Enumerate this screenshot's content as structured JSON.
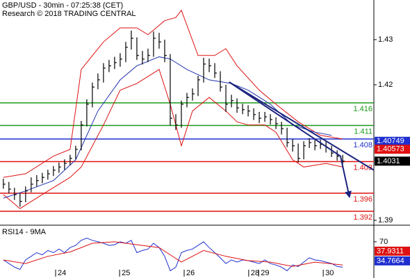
{
  "chart_data": [
    {
      "type": "ohlc",
      "title": "GBP/USD - 30min - 07:25:38 (CET)",
      "subtitle": "Research © 2018 TRADING CENTRAL",
      "color": "#000000",
      "values": [
        1.398,
        1.3969,
        1.3957,
        1.3942,
        1.3965,
        1.398,
        1.3988,
        1.3995,
        1.4003,
        1.4011,
        1.4018,
        1.4026,
        1.4037,
        1.4057,
        1.4111,
        1.4157,
        1.4195,
        1.4211,
        1.4237,
        1.4242,
        1.4249,
        1.4257,
        1.4283,
        1.4303,
        1.4265,
        1.4257,
        1.4265,
        1.4303,
        1.4295,
        1.4265,
        1.4126,
        1.4111,
        1.4157,
        1.4172,
        1.418,
        1.4211,
        1.4246,
        1.4242,
        1.4226,
        1.4195,
        1.4157,
        1.4165,
        1.4149,
        1.4145,
        1.4142,
        1.4134,
        1.4126,
        1.4129,
        1.4123,
        1.4114,
        1.4103,
        1.4072,
        1.4065,
        1.4037,
        1.4065,
        1.4072,
        1.4065,
        1.4068,
        1.4062,
        1.4049,
        1.4042,
        1.4031
      ],
      "high": [
        1.3992,
        1.3985,
        1.3972,
        1.396,
        1.3975,
        1.3995,
        1.4,
        1.4005,
        1.4012,
        1.402,
        1.4028,
        1.4035,
        1.4045,
        1.4065,
        1.412,
        1.4168,
        1.4205,
        1.4225,
        1.4248,
        1.4255,
        1.4262,
        1.427,
        1.4295,
        1.432,
        1.4305,
        1.4275,
        1.428,
        1.4318,
        1.4315,
        1.43,
        1.4268,
        1.4135,
        1.4165,
        1.4182,
        1.4192,
        1.422,
        1.426,
        1.4258,
        1.4248,
        1.423,
        1.42,
        1.4178,
        1.417,
        1.4158,
        1.4155,
        1.4148,
        1.414,
        1.414,
        1.4135,
        1.4128,
        1.4118,
        1.4105,
        1.408,
        1.407,
        1.4075,
        1.4082,
        1.4078,
        1.4078,
        1.4075,
        1.4065,
        1.4055,
        1.4045
      ],
      "low": [
        1.397,
        1.396,
        1.3945,
        1.393,
        1.394,
        1.3962,
        1.3975,
        1.3982,
        1.399,
        1.3998,
        1.4005,
        1.4012,
        1.4022,
        1.4035,
        1.4055,
        1.4108,
        1.415,
        1.419,
        1.4205,
        1.4228,
        1.4235,
        1.424,
        1.425,
        1.4278,
        1.4255,
        1.4245,
        1.425,
        1.4262,
        1.428,
        1.425,
        1.411,
        1.41,
        1.4105,
        1.415,
        1.4165,
        1.4175,
        1.4205,
        1.4228,
        1.4215,
        1.4185,
        1.414,
        1.415,
        1.4138,
        1.4135,
        1.413,
        1.4122,
        1.4115,
        1.4118,
        1.4112,
        1.4102,
        1.409,
        1.4062,
        1.4052,
        1.4028,
        1.4035,
        1.406,
        1.4055,
        1.4058,
        1.405,
        1.404,
        1.4032,
        1.4025
      ],
      "overlays": [
        {
          "color": "#dd1111",
          "x": [
            0,
            4,
            9,
            12,
            14,
            18,
            21,
            24,
            26,
            29,
            31,
            32,
            35,
            38,
            40,
            42,
            46,
            49,
            53,
            57,
            61
          ],
          "values": [
            1.3995,
            1.4003,
            1.4042,
            1.4057,
            1.4234,
            1.4295,
            1.4326,
            1.4326,
            1.4311,
            1.4342,
            1.4349,
            1.4365,
            1.4265,
            1.4265,
            1.428,
            1.4242,
            1.4188,
            1.4157,
            1.4118,
            1.4088,
            1.408
          ]
        },
        {
          "color": "#dd1111",
          "x": [
            0,
            3,
            7,
            12,
            14,
            18,
            21,
            24,
            28,
            30,
            32,
            34,
            37,
            40,
            42,
            44,
            47,
            49,
            52,
            54,
            58,
            61
          ],
          "values": [
            1.3957,
            1.3926,
            1.3957,
            1.3995,
            1.4018,
            1.4111,
            1.4188,
            1.4203,
            1.4234,
            1.4157,
            1.4065,
            1.4142,
            1.4172,
            1.4142,
            1.4118,
            1.4111,
            1.4111,
            1.4095,
            1.4034,
            1.4018,
            1.4026,
            1.4018
          ]
        },
        {
          "color": "#2233aa",
          "x": [
            0,
            4,
            9,
            13,
            17,
            21,
            24,
            28,
            30,
            33,
            37,
            41,
            44,
            48,
            52,
            56,
            59
          ],
          "values": [
            1.3949,
            1.3965,
            1.3988,
            1.4034,
            1.4142,
            1.4211,
            1.4242,
            1.4262,
            1.4257,
            1.4234,
            1.4211,
            1.4203,
            1.4188,
            1.4157,
            1.4111,
            1.4095,
            1.4088
          ]
        }
      ],
      "trendlines": [
        {
          "color": "#1a237e",
          "x": [
            40.6,
            60.6,
            62.2
          ],
          "values": [
            1.4206,
            1.4042,
            1.3952
          ]
        },
        {
          "color": "#1a237e",
          "x": [
            40.6,
            66.6
          ],
          "values": [
            1.4206,
            1.4011
          ]
        }
      ],
      "levels": [
        {
          "value": 1.416,
          "color": "#1a9a1a"
        },
        {
          "value": 1.411,
          "color": "#1a9a1a"
        },
        {
          "value": 1.408,
          "color": "#1f2fd0"
        },
        {
          "value": 1.403,
          "color": "#e01010"
        },
        {
          "value": 1.396,
          "color": "#e01010"
        },
        {
          "value": 1.392,
          "color": "#e01010"
        }
      ],
      "price_tags": [
        {
          "value": 1.40749,
          "color": "#1f2fd0"
        },
        {
          "value": 1.40573,
          "color": "#e01010"
        },
        {
          "value": 1.4031,
          "color": "#000000"
        }
      ],
      "xlim": [
        -0.6,
        66.6
      ],
      "ylim": [
        1.38923,
        1.43877
      ],
      "yticks": [
        1.43,
        1.42,
        1.39
      ]
    },
    {
      "type": "line",
      "title": "RSI14 - 9MA",
      "series": [
        {
          "color": "#1f2fd0",
          "x": [
            0,
            1,
            2,
            3,
            4,
            5,
            6,
            7,
            8,
            9,
            10,
            11,
            12,
            13,
            14,
            15,
            16,
            17,
            18,
            19,
            20,
            21,
            22,
            23,
            24,
            25,
            26,
            27,
            28,
            29,
            30,
            31,
            32,
            33,
            34,
            35,
            36,
            37,
            38,
            39,
            40,
            41,
            42,
            43,
            44,
            45,
            46,
            47,
            48,
            49,
            50,
            51,
            52,
            53,
            54,
            55,
            56,
            57,
            58,
            59,
            60,
            61
          ],
          "values": [
            45,
            40,
            35,
            32,
            45,
            50,
            55,
            52,
            58,
            55,
            60,
            55,
            62,
            65,
            72,
            75,
            72,
            70,
            68,
            65,
            66,
            70,
            68,
            72,
            55,
            58,
            60,
            68,
            62,
            50,
            30,
            35,
            55,
            58,
            60,
            65,
            70,
            62,
            55,
            48,
            40,
            45,
            42,
            45,
            44,
            42,
            40,
            45,
            40,
            38,
            35,
            30,
            38,
            36,
            42,
            48,
            45,
            44,
            42,
            40,
            36,
            35
          ]
        },
        {
          "color": "#dd1111",
          "x": [
            0,
            4,
            8,
            12,
            16,
            20,
            24,
            28,
            32,
            36,
            40,
            44,
            48,
            52,
            56,
            61
          ],
          "values": [
            45,
            40,
            50,
            56,
            68,
            70,
            66,
            62,
            42,
            58,
            50,
            44,
            42,
            36,
            42,
            38
          ]
        }
      ],
      "tags": [
        {
          "value": 37.9311,
          "color": "#dd1111"
        },
        {
          "value": 34.7664,
          "color": "#1f2fd0"
        }
      ],
      "xlim": [
        -0.6,
        66.6
      ],
      "ylim": [
        22,
        90
      ],
      "yticks": [
        70
      ],
      "xticks": [
        {
          "value": 9.4,
          "label": "24"
        },
        {
          "value": 20.9,
          "label": "25"
        },
        {
          "value": 32.5,
          "label": "26"
        },
        {
          "value": 44.1,
          "label": "28"
        },
        {
          "value": 45.9,
          "label": "29"
        },
        {
          "value": 57.5,
          "label": "30"
        }
      ]
    }
  ]
}
